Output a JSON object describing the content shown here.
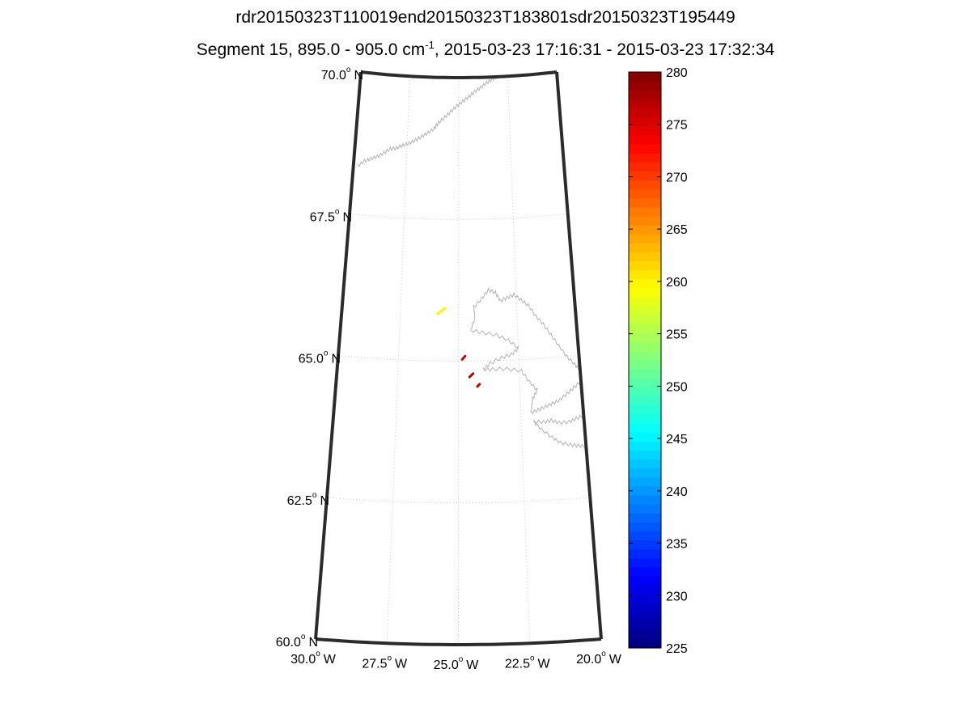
{
  "title": {
    "line1": "rdr20150323T110019end20150323T183801sdr20150323T195449",
    "line2_prefix": "Segment 15, 895.0 - 905.0 cm",
    "line2_superscript": "-1",
    "line2_suffix": ", 2015-03-23 17:16:31 - 2015-03-23 17:32:34"
  },
  "map": {
    "projection": "conic",
    "lat_range": [
      60.0,
      70.0
    ],
    "lon_range": [
      -30.0,
      -20.0
    ],
    "lat_labels": [
      {
        "value": 70.0,
        "num": "70.0",
        "deg": "o",
        "hemi": "N"
      },
      {
        "value": 67.5,
        "num": "67.5",
        "deg": "o",
        "hemi": "N"
      },
      {
        "value": 65.0,
        "num": "65.0",
        "deg": "o",
        "hemi": "N"
      },
      {
        "value": 62.5,
        "num": "62.5",
        "deg": "o",
        "hemi": "N"
      },
      {
        "value": 60.0,
        "num": "60.0",
        "deg": "o",
        "hemi": "N"
      }
    ],
    "lon_labels": [
      {
        "value": -30.0,
        "num": "30.0",
        "deg": "o",
        "hemi": "W"
      },
      {
        "value": -27.5,
        "num": "27.5",
        "deg": "o",
        "hemi": "W"
      },
      {
        "value": -25.0,
        "num": "25.0",
        "deg": "o",
        "hemi": "W"
      },
      {
        "value": -22.5,
        "num": "22.5",
        "deg": "o",
        "hemi": "W"
      },
      {
        "value": -20.0,
        "num": "20.0",
        "deg": "o",
        "hemi": "W"
      }
    ],
    "grid": true,
    "coastline_color": "#b3b3b3",
    "observations": [
      {
        "lon": -25.9,
        "lat": 65.83,
        "lon2": -25.6,
        "lat2": 65.93,
        "value": 260
      },
      {
        "lon": -24.85,
        "lat": 65.03,
        "lon2": -24.73,
        "lat2": 65.09,
        "value": 276
      },
      {
        "lon": -24.55,
        "lat": 64.72,
        "lon2": -24.4,
        "lat2": 64.78,
        "value": 277
      },
      {
        "lon": -24.23,
        "lat": 64.55,
        "lon2": -24.14,
        "lat2": 64.59,
        "value": 277
      }
    ]
  },
  "colorbar": {
    "min": 225,
    "max": 280,
    "colormap": "jet",
    "ticks": [
      "225",
      "230",
      "235",
      "240",
      "245",
      "250",
      "255",
      "260",
      "265",
      "270",
      "275",
      "280"
    ]
  }
}
